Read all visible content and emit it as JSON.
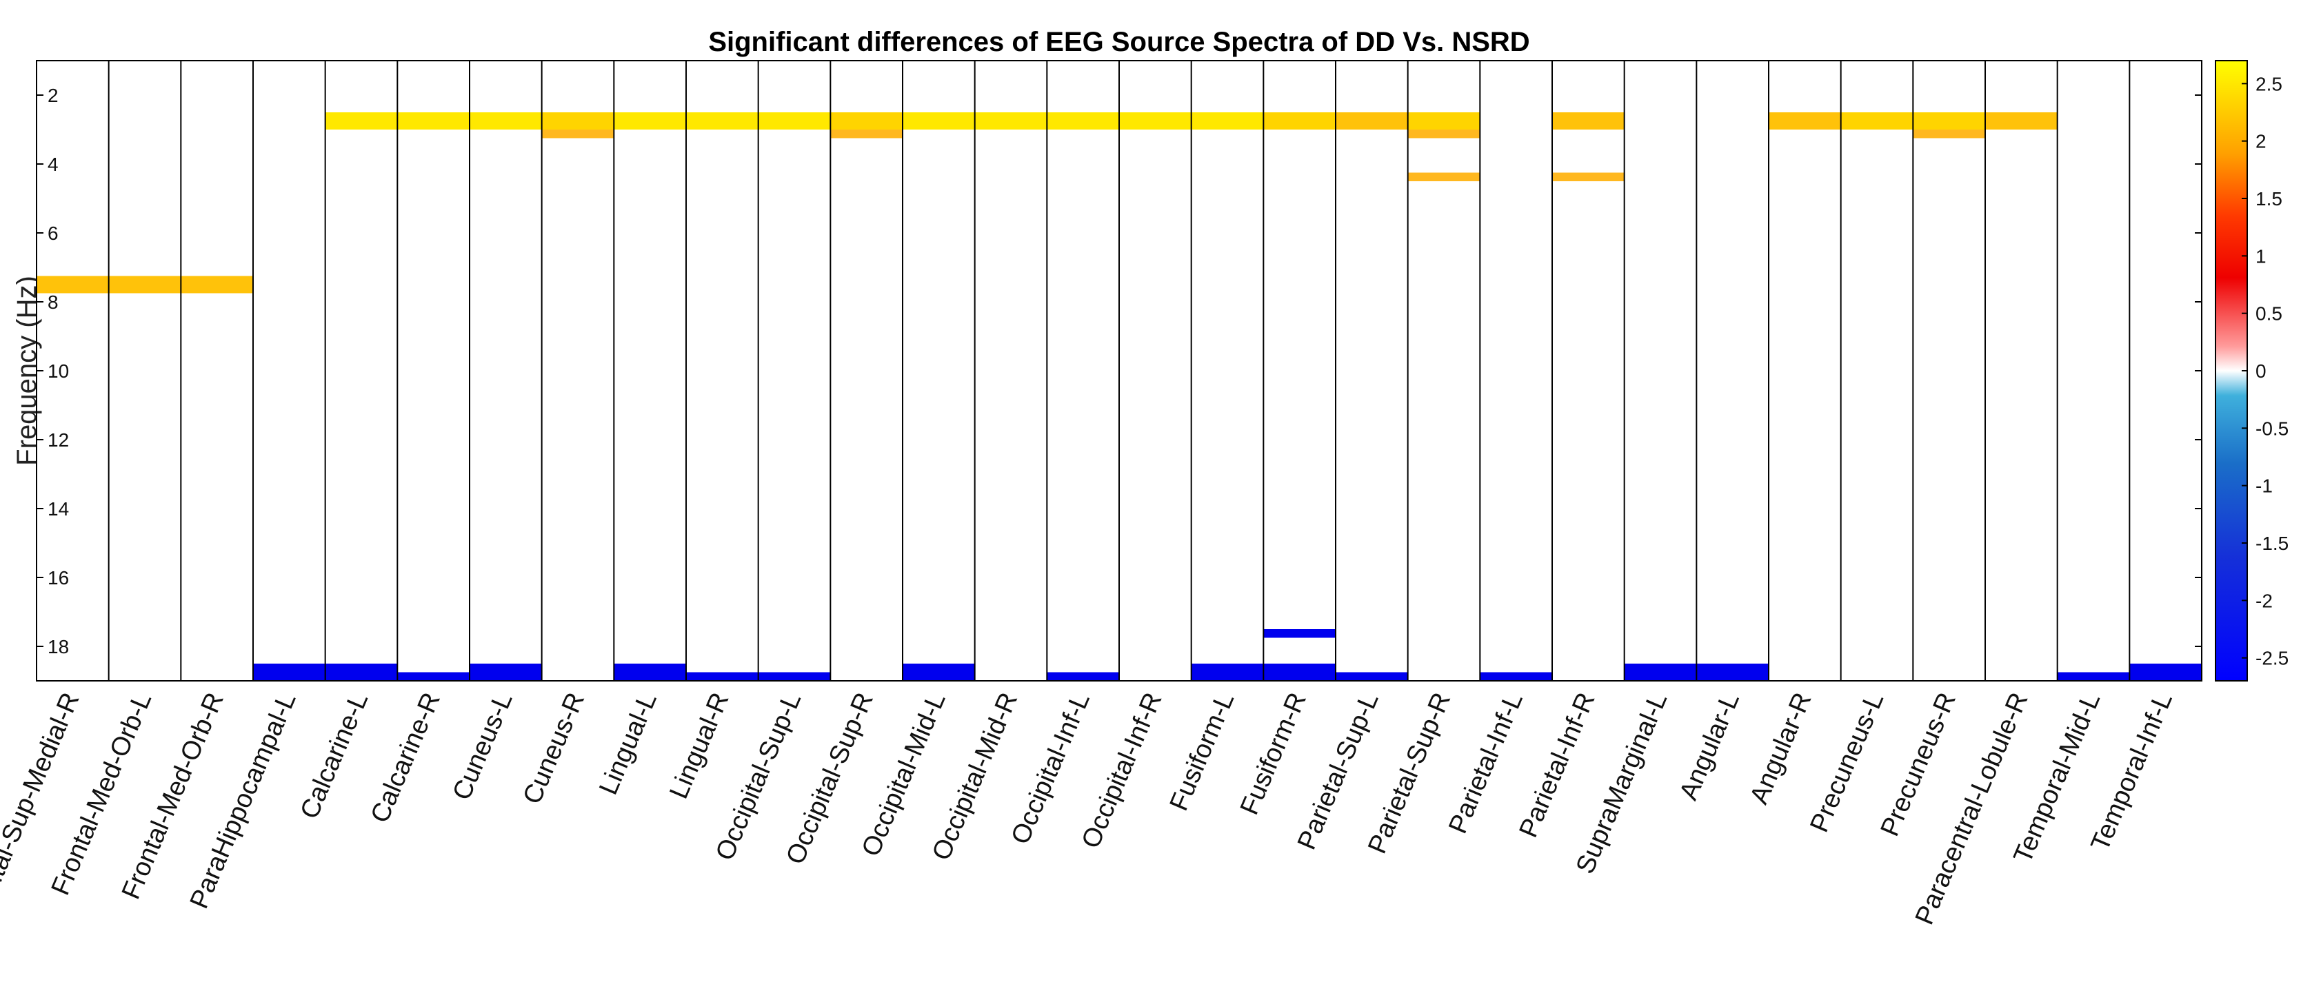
{
  "chart_data": {
    "type": "heatmap",
    "title": "Significant differences of EEG Source Spectra of DD Vs. NSRD",
    "xlabel": "",
    "ylabel": "Frequency (Hz)",
    "ylim": [
      1,
      19
    ],
    "y_direction": "reversed",
    "yticks": [
      "2",
      "4",
      "6",
      "8",
      "10",
      "12",
      "14",
      "16",
      "18"
    ],
    "colorbar": {
      "range": [
        -2.7,
        2.7
      ],
      "ticks": [
        "2.5",
        "2",
        "1.5",
        "1",
        "0.5",
        "0",
        "-0.5",
        "-1",
        "-1.5",
        "-2",
        "-2.5"
      ]
    },
    "regions": [
      "Frontal-Sup-Medial-R",
      "Frontal-Med-Orb-L",
      "Frontal-Med-Orb-R",
      "ParaHippocampal-L",
      "Calcarine-L",
      "Calcarine-R",
      "Cuneus-L",
      "Cuneus-R",
      "Lingual-L",
      "Lingual-R",
      "Occipital-Sup-L",
      "Occipital-Sup-R",
      "Occipital-Mid-L",
      "Occipital-Mid-R",
      "Occipital-Inf-L",
      "Occipital-Inf-R",
      "Fusiform-L",
      "Fusiform-R",
      "Parietal-Sup-L",
      "Parietal-Sup-R",
      "Parietal-Inf-L",
      "Parietal-Inf-R",
      "SupraMarginal-L",
      "Angular-L",
      "Angular-R",
      "Precuneus-L",
      "Precuneus-R",
      "Paracentral-Lobule-R",
      "Temporal-Mid-L",
      "Temporal-Inf-L"
    ],
    "significant_cells": [
      {
        "col": 0,
        "from": 7.25,
        "to": 7.75,
        "value": 2.1
      },
      {
        "col": 1,
        "from": 7.25,
        "to": 7.75,
        "value": 2.1
      },
      {
        "col": 2,
        "from": 7.25,
        "to": 7.75,
        "value": 2.1
      },
      {
        "col": 3,
        "from": 18.5,
        "to": 19.0,
        "value": -2.6
      },
      {
        "col": 4,
        "from": 2.5,
        "to": 3.0,
        "value": 2.5
      },
      {
        "col": 4,
        "from": 18.5,
        "to": 19.0,
        "value": -2.6
      },
      {
        "col": 5,
        "from": 2.5,
        "to": 3.0,
        "value": 2.4
      },
      {
        "col": 5,
        "from": 18.75,
        "to": 19.0,
        "value": -2.6
      },
      {
        "col": 6,
        "from": 2.5,
        "to": 3.0,
        "value": 2.4
      },
      {
        "col": 6,
        "from": 18.5,
        "to": 19.0,
        "value": -2.6
      },
      {
        "col": 7,
        "from": 2.5,
        "to": 3.0,
        "value": 2.3
      },
      {
        "col": 7,
        "from": 3.0,
        "to": 3.25,
        "value": 2.0
      },
      {
        "col": 8,
        "from": 2.5,
        "to": 3.0,
        "value": 2.5
      },
      {
        "col": 8,
        "from": 18.5,
        "to": 19.0,
        "value": -2.6
      },
      {
        "col": 9,
        "from": 2.5,
        "to": 3.0,
        "value": 2.5
      },
      {
        "col": 9,
        "from": 18.75,
        "to": 19.0,
        "value": -2.6
      },
      {
        "col": 10,
        "from": 2.5,
        "to": 3.0,
        "value": 2.5
      },
      {
        "col": 10,
        "from": 18.75,
        "to": 19.0,
        "value": -2.6
      },
      {
        "col": 11,
        "from": 2.5,
        "to": 3.0,
        "value": 2.3
      },
      {
        "col": 11,
        "from": 3.0,
        "to": 3.25,
        "value": 2.0
      },
      {
        "col": 12,
        "from": 2.5,
        "to": 3.0,
        "value": 2.5
      },
      {
        "col": 12,
        "from": 18.5,
        "to": 19.0,
        "value": -2.6
      },
      {
        "col": 13,
        "from": 2.5,
        "to": 3.0,
        "value": 2.5
      },
      {
        "col": 14,
        "from": 2.5,
        "to": 3.0,
        "value": 2.5
      },
      {
        "col": 14,
        "from": 18.75,
        "to": 19.0,
        "value": -2.6
      },
      {
        "col": 15,
        "from": 2.5,
        "to": 3.0,
        "value": 2.5
      },
      {
        "col": 16,
        "from": 2.5,
        "to": 3.0,
        "value": 2.4
      },
      {
        "col": 16,
        "from": 18.5,
        "to": 19.0,
        "value": -2.6
      },
      {
        "col": 17,
        "from": 2.5,
        "to": 3.0,
        "value": 2.3
      },
      {
        "col": 17,
        "from": 17.5,
        "to": 17.75,
        "value": -2.6
      },
      {
        "col": 17,
        "from": 18.5,
        "to": 19.0,
        "value": -2.6
      },
      {
        "col": 18,
        "from": 2.5,
        "to": 3.0,
        "value": 2.2
      },
      {
        "col": 18,
        "from": 18.75,
        "to": 19.0,
        "value": -2.6
      },
      {
        "col": 19,
        "from": 2.5,
        "to": 3.0,
        "value": 2.3
      },
      {
        "col": 19,
        "from": 3.0,
        "to": 3.25,
        "value": 2.0
      },
      {
        "col": 19,
        "from": 4.25,
        "to": 4.5,
        "value": 2.0
      },
      {
        "col": 20,
        "from": 18.75,
        "to": 19.0,
        "value": -2.6
      },
      {
        "col": 21,
        "from": 2.5,
        "to": 3.0,
        "value": 2.1
      },
      {
        "col": 21,
        "from": 4.25,
        "to": 4.5,
        "value": 2.0
      },
      {
        "col": 22,
        "from": 18.5,
        "to": 19.0,
        "value": -2.6
      },
      {
        "col": 23,
        "from": 18.5,
        "to": 19.0,
        "value": -2.6
      },
      {
        "col": 24,
        "from": 2.5,
        "to": 3.0,
        "value": 2.2
      },
      {
        "col": 25,
        "from": 2.5,
        "to": 3.0,
        "value": 2.3
      },
      {
        "col": 26,
        "from": 2.5,
        "to": 3.0,
        "value": 2.3
      },
      {
        "col": 26,
        "from": 3.0,
        "to": 3.25,
        "value": 2.0
      },
      {
        "col": 27,
        "from": 2.5,
        "to": 3.0,
        "value": 2.1
      },
      {
        "col": 28,
        "from": 18.75,
        "to": 19.0,
        "value": -2.6
      },
      {
        "col": 29,
        "from": 18.5,
        "to": 19.0,
        "value": -2.6
      }
    ]
  }
}
